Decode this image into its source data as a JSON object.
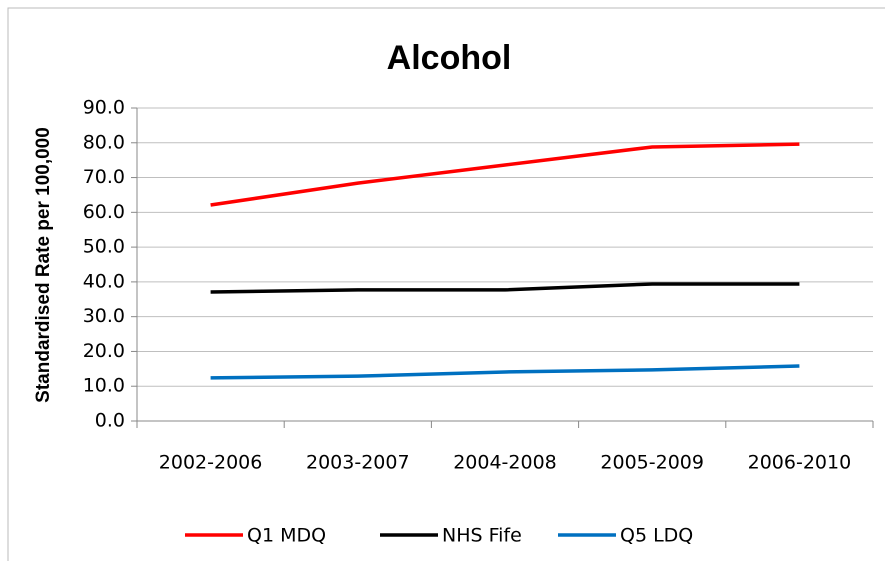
{
  "chart_data": {
    "type": "line",
    "title": "Alcohol",
    "y_label": "Standardised Rate per 100,000",
    "categories": [
      "2002-2006",
      "2003-2007",
      "2004-2008",
      "2005-2009",
      "2006-2010"
    ],
    "series": [
      {
        "name": "Q1 MDQ",
        "color": "#ff0000",
        "values": [
          62.1,
          68.4,
          73.6,
          78.8,
          79.6
        ]
      },
      {
        "name": "NHS Fife",
        "color": "#000000",
        "values": [
          37.1,
          37.7,
          37.7,
          39.4,
          39.4
        ]
      },
      {
        "name": "Q5 LDQ",
        "color": "#0070c0",
        "values": [
          12.4,
          12.9,
          14.1,
          14.7,
          15.8
        ]
      }
    ],
    "ylim": [
      0,
      90
    ],
    "yticks": [
      {
        "value": 0,
        "label": "0.0"
      },
      {
        "value": 10,
        "label": "10.0"
      },
      {
        "value": 20,
        "label": "20.0"
      },
      {
        "value": 30,
        "label": "30.0"
      },
      {
        "value": 40,
        "label": "40.0"
      },
      {
        "value": 50,
        "label": "50.0"
      },
      {
        "value": 60,
        "label": "60.0"
      },
      {
        "value": 70,
        "label": "70.0"
      },
      {
        "value": 80,
        "label": "80.0"
      },
      {
        "value": 90,
        "label": "90.0"
      }
    ],
    "grid": true,
    "legend": "bottom"
  }
}
